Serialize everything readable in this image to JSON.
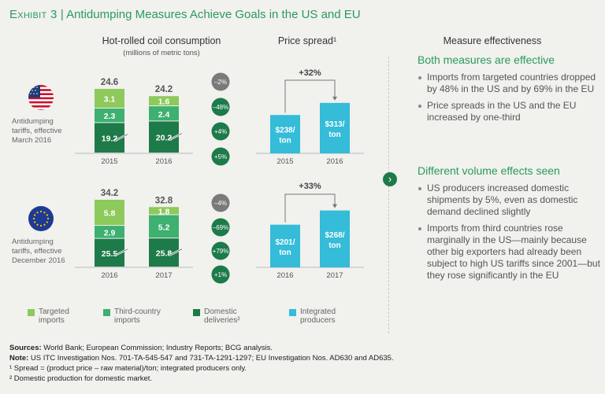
{
  "title": {
    "exhibit": "Exhibit 3",
    "sep": " | ",
    "text": "Antidumping Measures Achieve Goals in the US and EU"
  },
  "headers": {
    "consumption": "Hot-rolled coil consumption",
    "consumption_unit": "(millions of metric tons)",
    "price": "Price spread¹",
    "effectiveness": "Measure effectiveness"
  },
  "regions": [
    {
      "flag": "US flag",
      "label_lines": [
        "Antidumping",
        "tariffs, effective",
        "March 2016"
      ]
    },
    {
      "flag": "EU flag",
      "label_lines": [
        "Antidumping",
        "tariffs, effective",
        "December 2016"
      ]
    }
  ],
  "colors": {
    "targeted": "#8dc95b",
    "third": "#3eb070",
    "domestic": "#1d7a49",
    "integrated": "#34bcd8",
    "change_dark": "#1d7a49",
    "change_grey": "#7a7a7a"
  },
  "chart_data": [
    {
      "type": "bar",
      "stacked": true,
      "title": "Hot-rolled coil consumption (US)",
      "categories": [
        "2015",
        "2016"
      ],
      "series": [
        {
          "name": "Domestic deliveries",
          "values": [
            19.2,
            20.2
          ]
        },
        {
          "name": "Third-country imports",
          "values": [
            2.3,
            2.4
          ]
        },
        {
          "name": "Targeted imports",
          "values": [
            3.1,
            1.6
          ]
        }
      ],
      "totals": [
        "24.6",
        "24.2"
      ],
      "changes": [
        "–2%",
        "–48%",
        "+4%",
        "+5%"
      ]
    },
    {
      "type": "bar",
      "title": "Price spread (US)",
      "categories": [
        "2015",
        "2016"
      ],
      "values": [
        238,
        313
      ],
      "value_labels": [
        [
          "$238/",
          "ton"
        ],
        [
          "$313/",
          "ton"
        ]
      ],
      "change": "+32%"
    },
    {
      "type": "bar",
      "stacked": true,
      "title": "Hot-rolled coil consumption (EU)",
      "categories": [
        "2016",
        "2017"
      ],
      "series": [
        {
          "name": "Domestic deliveries",
          "values": [
            25.5,
            25.8
          ]
        },
        {
          "name": "Third-country imports",
          "values": [
            2.9,
            5.2
          ]
        },
        {
          "name": "Targeted imports",
          "values": [
            5.8,
            1.8
          ]
        }
      ],
      "totals": [
        "34.2",
        "32.8"
      ],
      "changes": [
        "–4%",
        "–69%",
        "+79%",
        "+1%"
      ]
    },
    {
      "type": "bar",
      "title": "Price spread (EU)",
      "categories": [
        "2016",
        "2017"
      ],
      "values": [
        201,
        268
      ],
      "value_labels": [
        [
          "$201/",
          "ton"
        ],
        [
          "$268/",
          "ton"
        ]
      ],
      "change": "+33%"
    }
  ],
  "effectiveness": {
    "sections": [
      {
        "heading": "Both measures are effective",
        "bullets": [
          "Imports from targeted countries dropped by 48% in the US and by 69% in the EU",
          "Price spreads in the US and the EU increased by one-third"
        ]
      },
      {
        "heading": "Different volume effects seen",
        "bullets": [
          "US producers increased domestic shipments by 5%, even as domestic demand declined slightly",
          "Imports from third countries rose marginally in the US—mainly because other big exporters had already been subject to high US tariffs since 2001—but they rose significantly in the EU"
        ]
      }
    ]
  },
  "legend": [
    {
      "key": "targeted",
      "lines": [
        "Targeted",
        "imports"
      ]
    },
    {
      "key": "third",
      "lines": [
        "Third-country",
        "imports"
      ]
    },
    {
      "key": "domestic",
      "lines": [
        "Domestic",
        "deliveries²"
      ]
    },
    {
      "key": "integrated",
      "lines": [
        "Integrated",
        "producers"
      ]
    }
  ],
  "sources": {
    "sources_label": "Sources:",
    "sources_text": "World Bank; European Commission; Industry Reports; BCG analysis.",
    "note_label": "Note:",
    "note_text": "US ITC Investigation Nos. 701-TA-545-547 and 731-TA-1291-1297; EU Investigation Nos. AD630 and AD635.",
    "footnote1": "¹ Spread = (product price – raw material)/ton; integrated producers only.",
    "footnote2": "² Domestic production for domestic market."
  }
}
